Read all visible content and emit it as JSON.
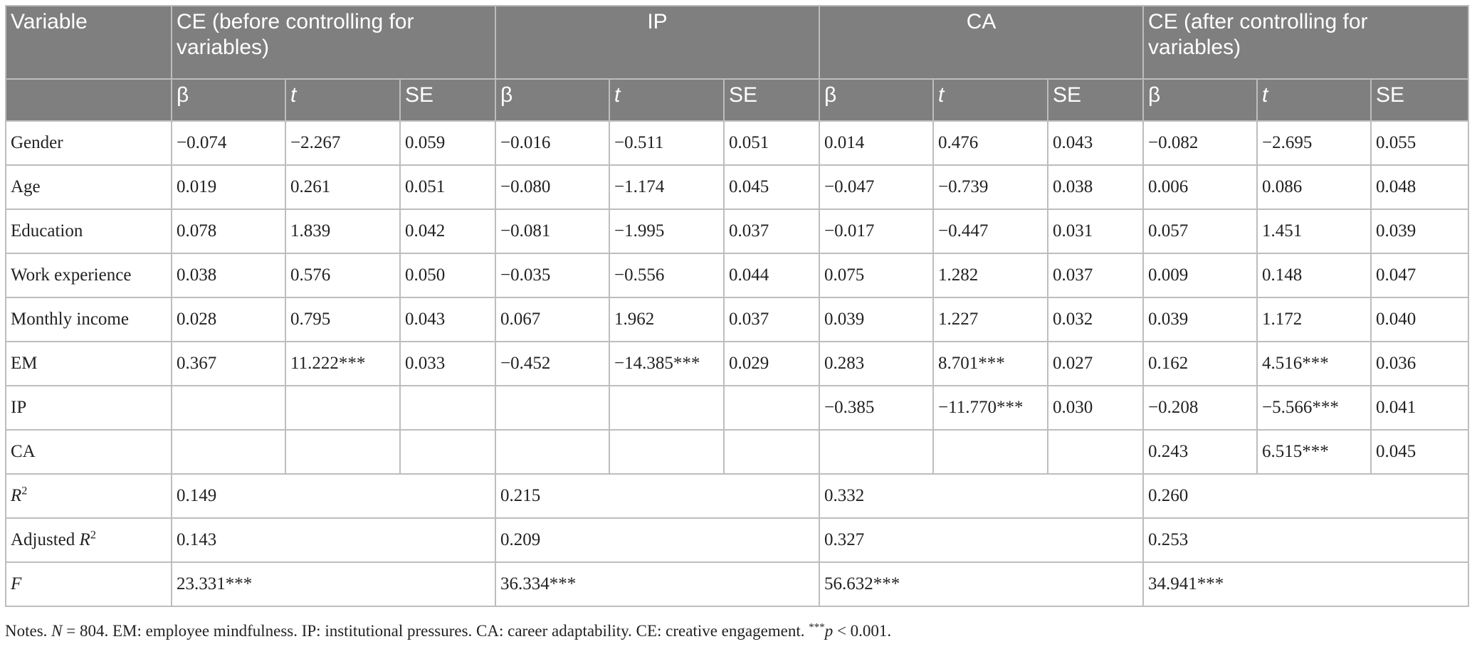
{
  "table": {
    "group_headers": [
      "Variable",
      "CE (before controlling for variables)",
      "IP",
      "CA",
      "CE (after controlling for variables)"
    ],
    "subheaders": [
      "β",
      "t",
      "SE",
      "β",
      "t",
      "SE",
      "β",
      "t",
      "SE",
      "β",
      "t",
      "SE"
    ],
    "rows": [
      {
        "label": "Gender",
        "cells": [
          "−0.074",
          "−2.267",
          "0.059",
          "−0.016",
          "−0.511",
          "0.051",
          "0.014",
          "0.476",
          "0.043",
          "−0.082",
          "−2.695",
          "0.055"
        ]
      },
      {
        "label": "Age",
        "cells": [
          "0.019",
          "0.261",
          "0.051",
          "−0.080",
          "−1.174",
          "0.045",
          "−0.047",
          "−0.739",
          "0.038",
          "0.006",
          "0.086",
          "0.048"
        ]
      },
      {
        "label": "Education",
        "cells": [
          "0.078",
          "1.839",
          "0.042",
          "−0.081",
          "−1.995",
          "0.037",
          "−0.017",
          "−0.447",
          "0.031",
          "0.057",
          "1.451",
          "0.039"
        ]
      },
      {
        "label": "Work experience",
        "cells": [
          "0.038",
          "0.576",
          "0.050",
          "−0.035",
          "−0.556",
          "0.044",
          "0.075",
          "1.282",
          "0.037",
          "0.009",
          "0.148",
          "0.047"
        ]
      },
      {
        "label": "Monthly income",
        "cells": [
          "0.028",
          "0.795",
          "0.043",
          "0.067",
          "1.962",
          "0.037",
          "0.039",
          "1.227",
          "0.032",
          "0.039",
          "1.172",
          "0.040"
        ]
      },
      {
        "label": "EM",
        "cells": [
          "0.367",
          "11.222***",
          "0.033",
          "−0.452",
          "−14.385***",
          "0.029",
          "0.283",
          "8.701***",
          "0.027",
          "0.162",
          "4.516***",
          "0.036"
        ]
      },
      {
        "label": "IP",
        "cells": [
          null,
          null,
          null,
          null,
          null,
          null,
          "−0.385",
          "−11.770***",
          "0.030",
          "−0.208",
          "−5.566***",
          "0.041"
        ]
      },
      {
        "label": "CA",
        "cells": [
          null,
          null,
          null,
          null,
          null,
          null,
          null,
          null,
          null,
          "0.243",
          "6.515***",
          "0.045"
        ]
      },
      {
        "label_italic": "R",
        "label_sup": "2",
        "group_values": [
          "0.149",
          "0.215",
          "0.332",
          "0.260"
        ]
      },
      {
        "label": "Adjusted ",
        "label_italic": "R",
        "label_sup": "2",
        "group_values": [
          "0.143",
          "0.209",
          "0.327",
          "0.253"
        ]
      },
      {
        "label_italic": "F",
        "group_values": [
          "23.331***",
          "36.334***",
          "56.632***",
          "34.941***"
        ]
      }
    ]
  },
  "notes": [
    {
      "text": "Notes. "
    },
    {
      "text": "N",
      "italic": true
    },
    {
      "text": " = 804. EM: employee mindfulness. IP: institutional pressures. CA: career adaptability. CE: creative engagement. "
    },
    {
      "text": "***",
      "sup": true
    },
    {
      "text": "p",
      "italic": true
    },
    {
      "text": " < 0.001."
    }
  ]
}
